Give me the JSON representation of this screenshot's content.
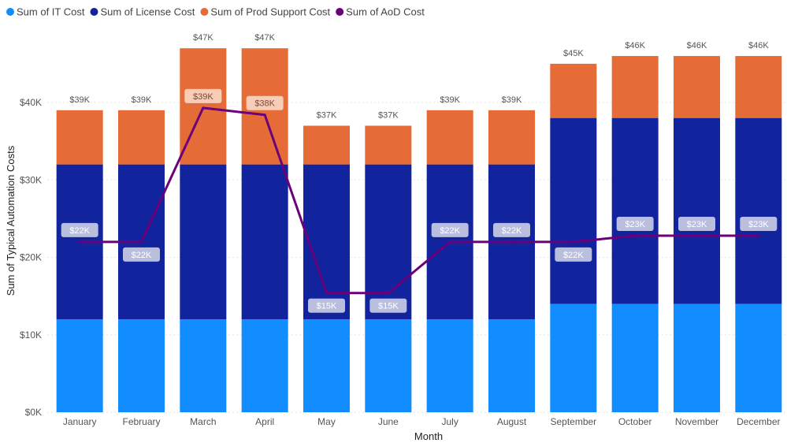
{
  "chart_data": {
    "type": "bar",
    "subtype": "stacked-bar-with-line",
    "title": "",
    "xlabel": "Month",
    "ylabel": "Sum of Typical Automation Costs",
    "ylim": [
      0,
      47000
    ],
    "y_ticks": [
      0,
      10000,
      20000,
      30000,
      40000
    ],
    "y_tick_labels": [
      "$0K",
      "$10K",
      "$20K",
      "$30K",
      "$40K"
    ],
    "grid": true,
    "legend_position": "top-left",
    "categories": [
      "January",
      "February",
      "March",
      "April",
      "May",
      "June",
      "July",
      "August",
      "September",
      "October",
      "November",
      "December"
    ],
    "series": [
      {
        "name": "Sum of IT Cost",
        "type": "bar",
        "color": "#118DFF",
        "values": [
          12000,
          12000,
          12000,
          12000,
          12000,
          12000,
          12000,
          12000,
          14000,
          14000,
          14000,
          14000
        ]
      },
      {
        "name": "Sum of License Cost",
        "type": "bar",
        "color": "#12239E",
        "values": [
          20000,
          20000,
          20000,
          20000,
          20000,
          20000,
          20000,
          20000,
          24000,
          24000,
          24000,
          24000
        ]
      },
      {
        "name": "Sum of Prod Support Cost",
        "type": "bar",
        "color": "#E66C37",
        "values": [
          7000,
          7000,
          15000,
          15000,
          5000,
          5000,
          7000,
          7000,
          7000,
          8000,
          8000,
          8000
        ]
      },
      {
        "name": "Sum of AoD Cost",
        "type": "line",
        "color": "#6B007B",
        "values": [
          22000,
          22000,
          39300,
          38400,
          15400,
          15400,
          22000,
          22000,
          22000,
          22800,
          22800,
          22800
        ]
      }
    ],
    "total_labels": [
      "$39K",
      "$39K",
      "$47K",
      "$47K",
      "$37K",
      "$37K",
      "$39K",
      "$39K",
      "$45K",
      "$46K",
      "$46K",
      "$46K"
    ],
    "line_labels": [
      "$22K",
      "$22K",
      "$39K",
      "$38K",
      "$15K",
      "$15K",
      "$22K",
      "$22K",
      "$22K",
      "$23K",
      "$23K",
      "$23K"
    ],
    "line_label_placement": [
      "above",
      "below",
      "above",
      "above",
      "below",
      "below",
      "above",
      "above",
      "below",
      "above",
      "above",
      "above"
    ]
  }
}
